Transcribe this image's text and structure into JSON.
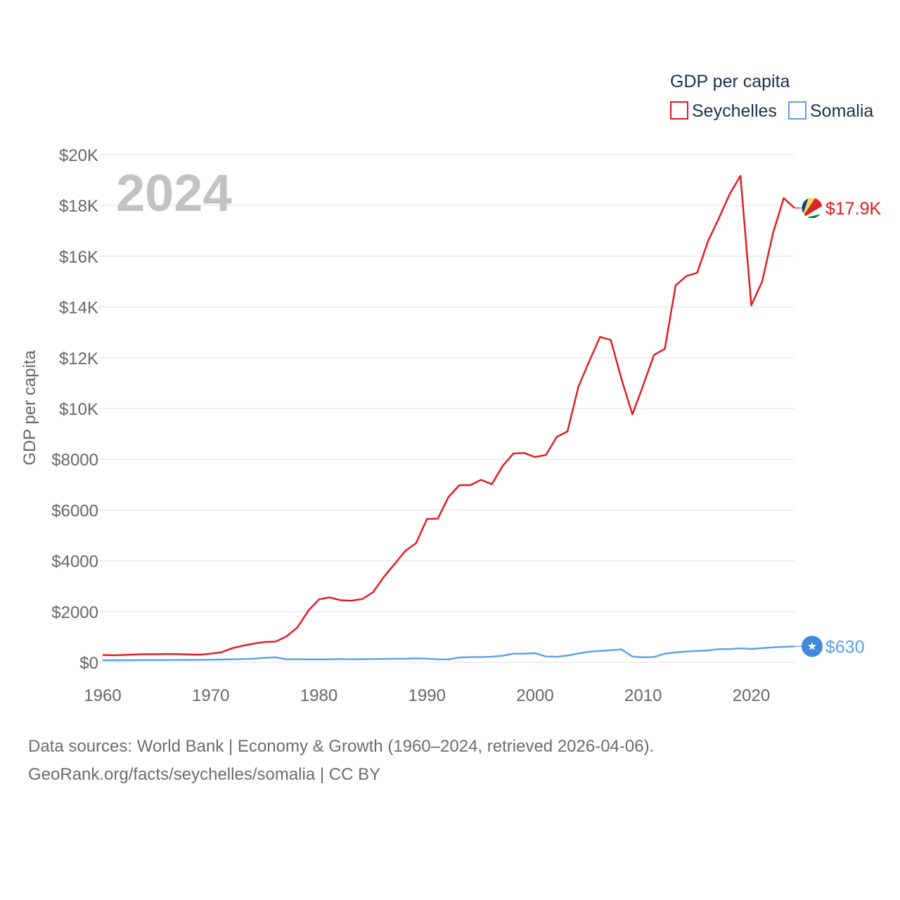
{
  "chart_data": {
    "type": "line",
    "title": "",
    "legend_title": "GDP per capita",
    "legend_position": "top-right",
    "ylabel": "GDP per capita",
    "xlabel": "",
    "xlim": [
      1960,
      2024
    ],
    "ylim": [
      0,
      20000
    ],
    "grid": true,
    "year_label": "2024",
    "x_ticks": [
      "1960",
      "1970",
      "1980",
      "1990",
      "2000",
      "2010",
      "2020"
    ],
    "x_tick_values": [
      1960,
      1970,
      1980,
      1990,
      2000,
      2010,
      2020
    ],
    "y_ticks": [
      "$0",
      "$2000",
      "$4000",
      "$6000",
      "$8000",
      "$10K",
      "$12K",
      "$14K",
      "$16K",
      "$18K",
      "$20K"
    ],
    "y_tick_values": [
      0,
      2000,
      4000,
      6000,
      8000,
      10000,
      12000,
      14000,
      16000,
      18000,
      20000
    ],
    "x": [
      1960,
      1961,
      1962,
      1963,
      1964,
      1965,
      1966,
      1967,
      1968,
      1969,
      1970,
      1971,
      1972,
      1973,
      1974,
      1975,
      1976,
      1977,
      1978,
      1979,
      1980,
      1981,
      1982,
      1983,
      1984,
      1985,
      1986,
      1987,
      1988,
      1989,
      1990,
      1991,
      1992,
      1993,
      1994,
      1995,
      1996,
      1997,
      1998,
      1999,
      2000,
      2001,
      2002,
      2003,
      2004,
      2005,
      2006,
      2007,
      2008,
      2009,
      2010,
      2011,
      2012,
      2013,
      2014,
      2015,
      2016,
      2017,
      2018,
      2019,
      2020,
      2021,
      2022,
      2023,
      2024
    ],
    "series": [
      {
        "name": "Seychelles",
        "color": "#e8141c",
        "end_label": "$17.9K",
        "flag_icon": "seychelles-flag-icon",
        "values": [
          290,
          280,
          295,
          310,
          325,
          320,
          330,
          325,
          310,
          305,
          340,
          400,
          560,
          660,
          740,
          800,
          820,
          1020,
          1370,
          2020,
          2480,
          2560,
          2450,
          2430,
          2490,
          2760,
          3360,
          3870,
          4390,
          4700,
          5650,
          5660,
          6520,
          6980,
          6980,
          7190,
          7020,
          7740,
          8230,
          8250,
          8090,
          8170,
          8880,
          9100,
          10850,
          11850,
          12820,
          12700,
          11150,
          9770,
          10920,
          12110,
          12350,
          14850,
          15220,
          15350,
          16600,
          17500,
          18450,
          19170,
          14060,
          15000,
          16900,
          18290,
          17900
        ]
      },
      {
        "name": "Somalia",
        "color": "#5a9fe6",
        "end_label": "$630",
        "flag_icon": "somalia-flag-icon",
        "values": [
          80,
          82,
          84,
          86,
          88,
          90,
          92,
          95,
          98,
          100,
          105,
          110,
          120,
          130,
          145,
          180,
          200,
          120,
          120,
          120,
          115,
          120,
          130,
          120,
          125,
          130,
          135,
          140,
          145,
          160,
          145,
          120,
          115,
          190,
          205,
          210,
          225,
          260,
          340,
          340,
          360,
          230,
          220,
          270,
          350,
          420,
          450,
          480,
          510,
          230,
          200,
          210,
          340,
          390,
          430,
          450,
          470,
          520,
          520,
          550,
          530,
          560,
          590,
          610,
          630
        ]
      }
    ]
  },
  "footer": {
    "line1": "Data sources: World Bank | Economy & Growth (1960–2024, retrieved 2026-04-06).",
    "line2": "GeoRank.org/facts/seychelles/somalia | CC BY"
  },
  "colors": {
    "grid": "#e6e6e6",
    "axis": "#666666"
  }
}
